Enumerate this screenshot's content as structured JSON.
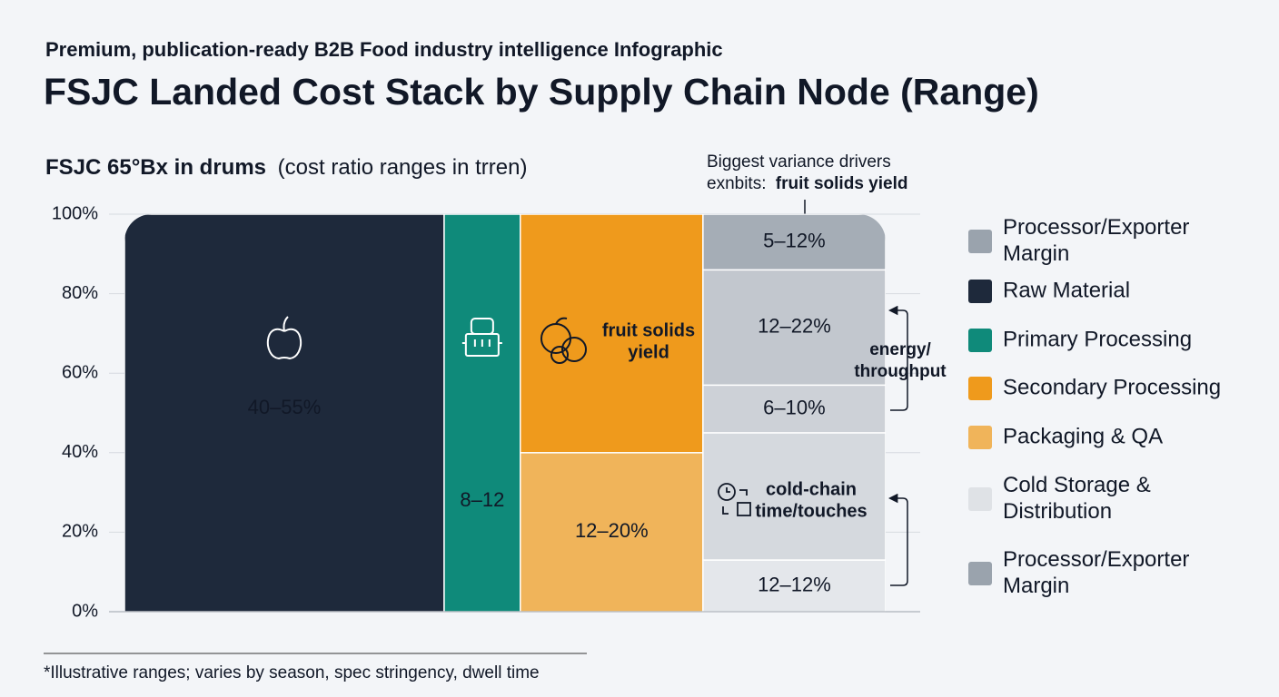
{
  "chart_data": {
    "type": "mekko",
    "kicker": "Premium, publication-ready B2B Food industry intelligence Infographic",
    "title": "FSJC Landed Cost Stack by Supply Chain Node (Range)",
    "subtitle_bold": "FSJC 65°Bx in drums",
    "subtitle": "(cost ratio ranges in trren)",
    "ylim": [
      0,
      100
    ],
    "yticks": [
      {
        "value": 0,
        "label": "0%"
      },
      {
        "value": 20,
        "label": "20%"
      },
      {
        "value": 40,
        "label": "40%"
      },
      {
        "value": 60,
        "label": "60%"
      },
      {
        "value": 80,
        "label": "80%"
      },
      {
        "value": 100,
        "label": "100%"
      }
    ],
    "grid": true,
    "columns": [
      {
        "width": 42,
        "segments": [
          {
            "value": 100,
            "color": "#1e293b",
            "label": [
              "40–55%"
            ]
          }
        ]
      },
      {
        "width": 10,
        "segments": [
          {
            "value": 100,
            "color": "#0f8a7a",
            "label": [
              "8–12"
            ]
          }
        ]
      },
      {
        "width": 24,
        "segments": [
          {
            "value": 40,
            "color": "#f0b45a",
            "label": [
              "12–20%"
            ]
          },
          {
            "value": 60,
            "color": "#ef9a1c",
            "label": [
              "fruit solids",
              "yield"
            ]
          }
        ]
      },
      {
        "width": 24,
        "segments": [
          {
            "value": 13,
            "color": "#e4e7eb",
            "label": [
              "12–12%"
            ]
          },
          {
            "value": 32,
            "color": "#d5d9de",
            "label": [
              "cold-chain",
              "time/touches"
            ]
          },
          {
            "value": 12,
            "color": "#cdd1d7",
            "label": [
              "6–10%"
            ]
          },
          {
            "value": 29,
            "color": "#c2c7ce",
            "label": [
              "12–22%"
            ]
          },
          {
            "value": 14,
            "color": "#a5adb6",
            "label": [
              "5–12%"
            ]
          }
        ]
      }
    ],
    "driver_note": {
      "line1": "Biggest variance drivers",
      "line2_prefix": "exnbits:",
      "line2_bold": "fruit solids yield"
    },
    "bracket_note": [
      "energy/",
      "throughput"
    ],
    "legend": [
      {
        "name": [
          "Processor/Exporter",
          "Margin"
        ],
        "color": "#9aa3ad"
      },
      {
        "name": [
          "Raw Material"
        ],
        "color": "#1e293b"
      },
      {
        "name": [
          "Primary Processing"
        ],
        "color": "#0f8a7a"
      },
      {
        "name": [
          "Secondary Processing"
        ],
        "color": "#ef9a1c"
      },
      {
        "name": [
          "Packaging & QA"
        ],
        "color": "#f0b45a"
      },
      {
        "name": [
          "Cold Storage &",
          "Distribution"
        ],
        "color": "#dfe2e6"
      },
      {
        "name": [
          "Processor/Exporter",
          "Margin"
        ],
        "color": "#9aa3ad"
      }
    ],
    "footnote": "*Illustrative ranges; varies by season, spec stringency, dwell time"
  }
}
